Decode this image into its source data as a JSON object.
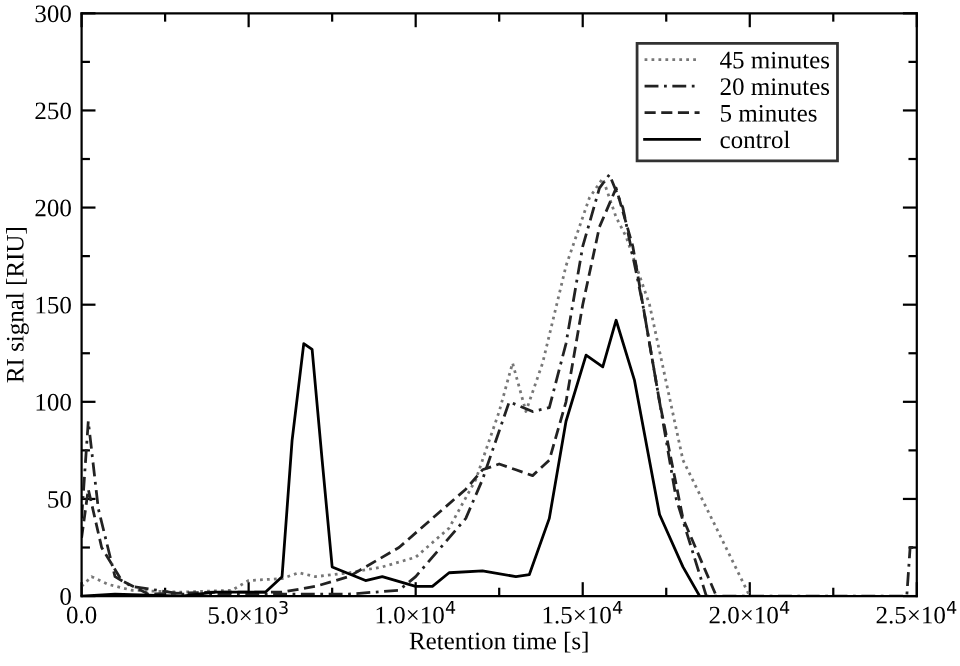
{
  "chart_data": {
    "type": "line",
    "xlabel": "Retention time [s]",
    "ylabel": "RI signal [RIU]",
    "xlim": [
      0,
      25000
    ],
    "ylim": [
      0,
      300
    ],
    "xticks": [
      {
        "value": 0,
        "label": "0.0"
      },
      {
        "value": 2500,
        "label": null
      },
      {
        "value": 5000,
        "label": "5.0×10$^{3}$"
      },
      {
        "value": 7500,
        "label": null
      },
      {
        "value": 10000,
        "label": "1.0×10$^{4}$"
      },
      {
        "value": 12500,
        "label": null
      },
      {
        "value": 15000,
        "label": "1.5×10$^{4}$"
      },
      {
        "value": 17500,
        "label": null
      },
      {
        "value": 20000,
        "label": "2.0×10$^{4}$"
      },
      {
        "value": 22500,
        "label": null
      },
      {
        "value": 25000,
        "label": "2.5×10$^{4}$"
      }
    ],
    "yticks": [
      0,
      {
        "value": 25,
        "label": null
      },
      50,
      {
        "value": 75,
        "label": null
      },
      100,
      {
        "value": 125,
        "label": null
      },
      150,
      {
        "value": 175,
        "label": null
      },
      200,
      {
        "value": 225,
        "label": null
      },
      250,
      {
        "value": 275,
        "label": null
      },
      300
    ],
    "grid": false,
    "legend": "top right",
    "marker": "none",
    "series": [
      {
        "name": "45 minutes",
        "color": "#777777",
        "line_style": "dotted",
        "x": [
          0,
          300,
          800,
          1500,
          3000,
          4500,
          5000,
          6000,
          6500,
          7000,
          8000,
          9000,
          10000,
          11000,
          11800,
          12500,
          12900,
          13300,
          13800,
          14500,
          15200,
          15600,
          16000,
          16300,
          17000,
          18000,
          19000,
          20000
        ],
        "values": [
          5,
          10,
          6,
          3,
          2,
          3,
          8,
          9,
          12,
          10,
          12,
          15,
          20,
          35,
          60,
          95,
          120,
          95,
          120,
          170,
          205,
          215,
          195,
          185,
          150,
          70,
          35,
          0
        ]
      },
      {
        "name": "20 minutes",
        "color": "#222222",
        "line_style": "dashdot",
        "x": [
          0,
          200,
          500,
          1000,
          1500,
          3000,
          6000,
          8000,
          9500,
          10000,
          11500,
          12000,
          12500,
          12800,
          13500,
          14000,
          14500,
          15000,
          15500,
          15800,
          16200,
          16800,
          17300,
          17800,
          18700,
          24700,
          24800,
          25000
        ],
        "values": [
          40,
          90,
          45,
          10,
          5,
          1,
          1,
          1,
          3,
          10,
          40,
          60,
          85,
          100,
          95,
          97,
          130,
          180,
          210,
          217,
          200,
          150,
          100,
          50,
          0,
          0,
          25,
          25
        ]
      },
      {
        "name": "5 minutes",
        "color": "#222222",
        "line_style": "dashed",
        "x": [
          0,
          200,
          600,
          1200,
          2000,
          4000,
          6000,
          7000,
          8000,
          9500,
          10500,
          11500,
          12000,
          12500,
          13000,
          13500,
          14000,
          14500,
          15000,
          15500,
          16000,
          16500,
          17300,
          18000,
          19000
        ],
        "values": [
          30,
          55,
          25,
          8,
          1,
          2,
          2,
          5,
          10,
          25,
          40,
          55,
          65,
          68,
          65,
          62,
          70,
          100,
          150,
          190,
          210,
          180,
          100,
          40,
          0
        ]
      },
      {
        "name": "control",
        "color": "#000000",
        "line_style": "solid",
        "x": [
          0,
          1000,
          3000,
          4000,
          5500,
          6000,
          6300,
          6650,
          6900,
          7200,
          7500,
          8500,
          9000,
          10000,
          10500,
          11000,
          12000,
          13000,
          13400,
          14000,
          14500,
          15100,
          15600,
          16000,
          16550,
          17300,
          18000,
          18500
        ],
        "values": [
          0,
          1,
          0,
          2,
          2,
          10,
          80,
          130,
          127,
          70,
          15,
          8,
          10,
          5,
          5,
          12,
          13,
          10,
          11,
          40,
          90,
          124,
          118,
          142,
          111,
          42,
          15,
          0
        ]
      }
    ]
  }
}
